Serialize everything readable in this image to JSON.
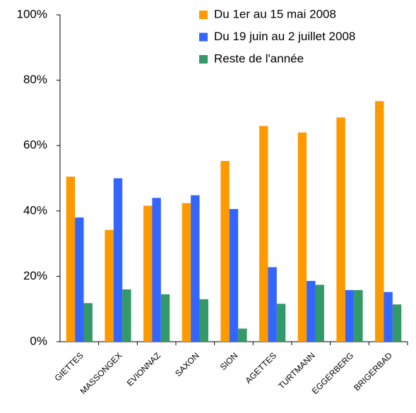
{
  "chart_data": {
    "type": "bar",
    "categories": [
      "GIETTES",
      "MASSONGEX",
      "EVIONNAZ",
      "SAXON",
      "SION",
      "AGETTES",
      "TURTMANN",
      "EGGERBERG",
      "BRIGERBAD"
    ],
    "series": [
      {
        "name": "Du 1er au 15 mai 2008",
        "color": "#ff9900",
        "values": [
          50.5,
          34.2,
          41.6,
          42.4,
          55.3,
          66,
          64,
          68.6,
          73.6
        ]
      },
      {
        "name": "Du 19 juin au 2 juillet 2008",
        "color": "#3366ff",
        "values": [
          38,
          50,
          44,
          44.8,
          40.6,
          22.8,
          18.6,
          15.8,
          15.2
        ]
      },
      {
        "name": "Reste de l'année",
        "color": "#339966",
        "values": [
          11.8,
          16,
          14.5,
          13,
          4,
          11.6,
          17.4,
          15.8,
          11.4
        ]
      }
    ],
    "ylim": [
      0,
      100
    ],
    "yticks": [
      {
        "value": 0,
        "label": "0%"
      },
      {
        "value": 20,
        "label": "20%"
      },
      {
        "value": 40,
        "label": "40%"
      },
      {
        "value": 60,
        "label": "60%"
      },
      {
        "value": 80,
        "label": "80%"
      },
      {
        "value": 100,
        "label": "100%"
      }
    ],
    "legend": "top-right"
  }
}
